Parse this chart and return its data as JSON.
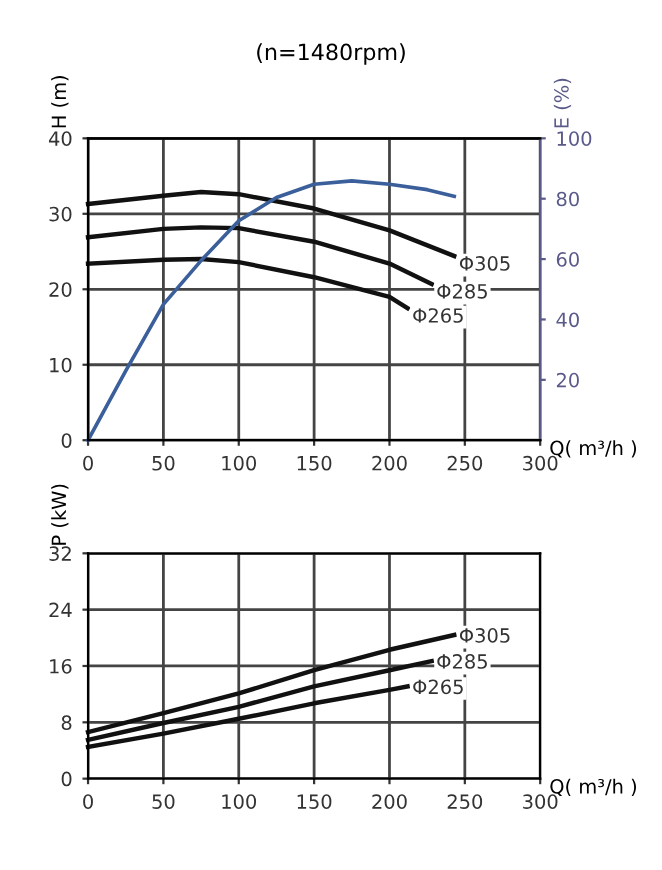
{
  "chart_data": [
    {
      "type": "line",
      "title": "(n=1480rpm)",
      "xlabel": "Q( m³/h )",
      "ylabel": "H (m)",
      "y2label": "E (%)",
      "xlim": [
        0,
        300
      ],
      "xticks": [
        0,
        50,
        100,
        150,
        200,
        250,
        300
      ],
      "ylim": [
        0,
        40
      ],
      "yticks": [
        0,
        10,
        20,
        30,
        40
      ],
      "y2lim": [
        0,
        100
      ],
      "y2ticks": [
        20,
        40,
        60,
        80,
        100
      ],
      "grid": true,
      "line_style": "solid",
      "marker": "none",
      "series": [
        {
          "name": "Φ305",
          "color": "#111111",
          "x": [
            0,
            50,
            75,
            100,
            150,
            200,
            243
          ],
          "values": [
            31.3,
            32.4,
            32.9,
            32.6,
            30.7,
            27.8,
            24.4
          ]
        },
        {
          "name": "Φ285",
          "color": "#111111",
          "x": [
            0,
            50,
            75,
            100,
            150,
            200,
            228
          ],
          "values": [
            26.9,
            28.0,
            28.2,
            28.1,
            26.3,
            23.4,
            20.7
          ]
        },
        {
          "name": "Φ265",
          "color": "#111111",
          "x": [
            0,
            50,
            75,
            100,
            150,
            200,
            212
          ],
          "values": [
            23.4,
            23.9,
            24.0,
            23.6,
            21.6,
            19.0,
            17.5
          ]
        },
        {
          "color": "#3a5f9a",
          "axis": "y2",
          "x": [
            0,
            25,
            50,
            75,
            100,
            125,
            150,
            175,
            200,
            225,
            243
          ],
          "values": [
            0,
            23,
            45,
            59.5,
            72.7,
            80.4,
            84.8,
            85.9,
            84.8,
            83,
            80.8
          ]
        }
      ]
    },
    {
      "type": "line",
      "xlabel": "Q( m³/h )",
      "ylabel": "P (kW)",
      "xlim": [
        0,
        300
      ],
      "xticks": [
        0,
        50,
        100,
        150,
        200,
        250,
        300
      ],
      "ylim": [
        0,
        32
      ],
      "yticks": [
        0,
        8,
        16,
        24,
        32
      ],
      "grid": true,
      "line_style": "solid",
      "marker": "none",
      "series": [
        {
          "name": "Φ305",
          "color": "#111111",
          "x": [
            0,
            50,
            100,
            150,
            200,
            243
          ],
          "values": [
            6.6,
            9.3,
            12.1,
            15.4,
            18.3,
            20.4
          ]
        },
        {
          "name": "Φ285",
          "color": "#111111",
          "x": [
            0,
            50,
            100,
            150,
            200,
            228
          ],
          "values": [
            5.5,
            7.9,
            10.2,
            13.1,
            15.4,
            16.7
          ]
        },
        {
          "name": "Φ265",
          "color": "#111111",
          "x": [
            0,
            50,
            100,
            150,
            200,
            212
          ],
          "values": [
            4.5,
            6.4,
            8.5,
            10.7,
            12.6,
            13.1
          ]
        }
      ]
    }
  ]
}
